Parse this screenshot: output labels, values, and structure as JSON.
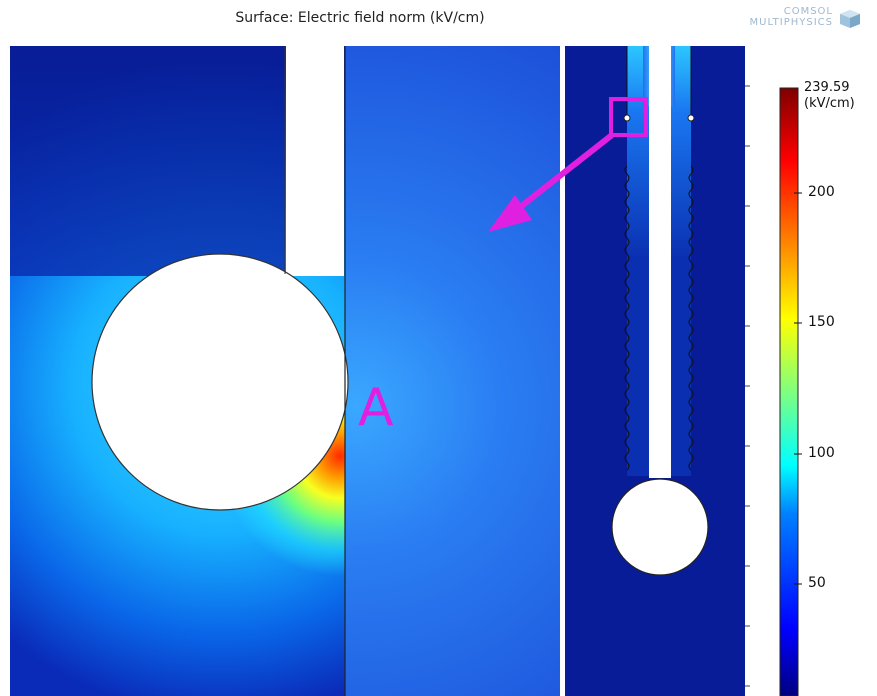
{
  "header": {
    "title": "Surface: Electric field norm (kV/cm)",
    "logo_line1": "COMSOL",
    "logo_line2": "MULTIPHYSICS"
  },
  "annotation": {
    "point_label": "A",
    "arrow_color": "#e020e0"
  },
  "colorbar": {
    "max_value": "239.59",
    "unit": "(kV/cm)",
    "ticks": [
      "200",
      "150",
      "100",
      "50"
    ],
    "colormap": "jet"
  },
  "colors": {
    "background_field": "#1f5ae6",
    "dark_field": "#081a9a",
    "hotspot": "#ff3a00"
  }
}
